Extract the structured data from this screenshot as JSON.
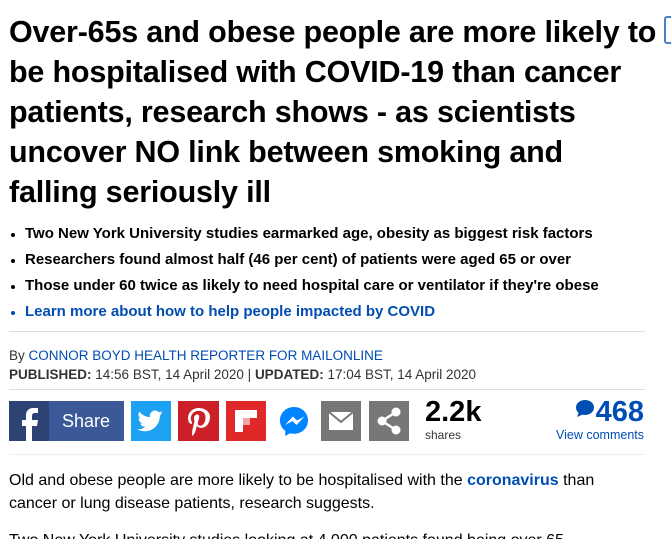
{
  "article": {
    "headline": "Over-65s and obese people are more likely to be hospitalised with COVID-19 than cancer patients, research shows - as scientists uncover NO link between smoking and falling seriously ill",
    "bullets": [
      "Two New York University studies earmarked age, obesity as biggest risk factors",
      "Researchers found almost half (46 per cent) of patients were aged 65 or over",
      "Those under 60 twice as likely to need hospital care or ventilator if they're obese",
      "Learn more about how to help people impacted by COVID"
    ],
    "byline": {
      "prefix": "By",
      "author": "CONNOR BOYD HEALTH REPORTER FOR MAILONLINE"
    },
    "dates": {
      "published_label": "PUBLISHED:",
      "published": "14:56 BST, 14 April 2020",
      "separator": "|",
      "updated_label": "UPDATED:",
      "updated": "17:04 BST, 14 April 2020"
    },
    "share": {
      "facebook_label": "Share",
      "count": "2.2k",
      "count_label": "shares",
      "comments_count": "468",
      "comments_label": "View comments"
    },
    "body": [
      {
        "before": "Old and obese people are more likely to be hospitalised with the",
        "link": "coronavirus",
        "after": "than cancer or lung disease patients, research suggests."
      },
      {
        "text": "Two New York University studies looking at 4,000 patients found being over 65"
      }
    ]
  }
}
